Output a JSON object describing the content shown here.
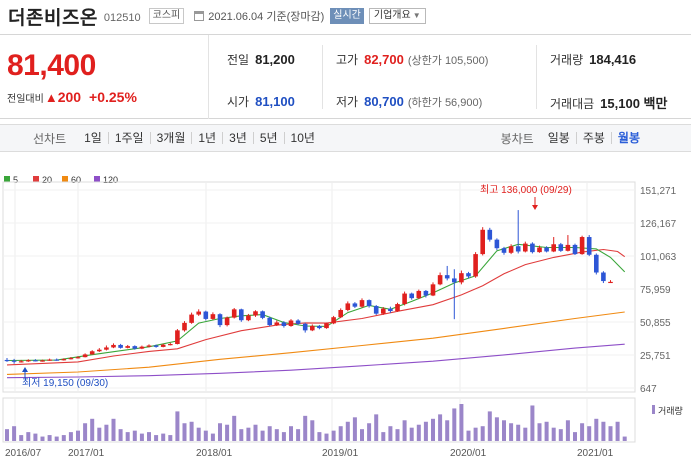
{
  "header": {
    "stock_name": "더존비즈온",
    "stock_code": "012510",
    "market": "코스피",
    "date_text": "2021.06.04 기준(장마감)",
    "realtime_label": "실시간",
    "company_info_label": "기업개요"
  },
  "price": {
    "current": "81,400",
    "change_label": "전일대비",
    "change_amount": "200",
    "change_rate": "+0.25%"
  },
  "stats": {
    "prev_close_label": "전일",
    "prev_close": "81,200",
    "high_label": "고가",
    "high": "82,700",
    "upper_limit": "(상한가 105,500)",
    "volume_label": "거래량",
    "volume": "184,416",
    "open_label": "시가",
    "open": "81,100",
    "low_label": "저가",
    "low": "80,700",
    "lower_limit": "(하한가 56,900)",
    "amount_label": "거래대금",
    "amount": "15,100 백만"
  },
  "tabs": {
    "line_chart_label": "선차트",
    "periods": [
      "1일",
      "1주일",
      "3개월",
      "1년",
      "3년",
      "5년",
      "10년"
    ],
    "candle_chart_label": "봉차트",
    "candles": [
      "일봉",
      "주봉",
      "월봉"
    ],
    "active_candle": "월봉"
  },
  "colors": {
    "up": "#e0201e",
    "down": "#2d56d6",
    "ma5": "#3aa63a",
    "ma20": "#e03c3c",
    "ma60": "#f08a12",
    "ma120": "#8e4fc8",
    "volume": "#9b86c9"
  },
  "chart_data": {
    "type": "candlestick",
    "title": "",
    "legend": [
      "5",
      "20",
      "60",
      "120"
    ],
    "y_ticks": [
      "151,271",
      "126,167",
      "101,063",
      "75,959",
      "50,855",
      "25,751",
      "647"
    ],
    "ylim": [
      647,
      151271
    ],
    "x_ticks": [
      "2016/07",
      "2017/01",
      "2018/01",
      "2019/01",
      "2020/01",
      "2021/01"
    ],
    "max_annotation": "최고 136,000 (09/29)",
    "min_annotation": "최저 19,150 (09/30)",
    "volume_legend": "거래량",
    "candles": [
      {
        "o": 22000,
        "c": 21500,
        "h": 23500,
        "l": 20500
      },
      {
        "o": 21500,
        "c": 20600,
        "h": 22800,
        "l": 19150
      },
      {
        "o": 20600,
        "c": 21000,
        "h": 22000,
        "l": 20000
      },
      {
        "o": 21000,
        "c": 21800,
        "h": 22500,
        "l": 20500
      },
      {
        "o": 21800,
        "c": 21200,
        "h": 22600,
        "l": 20800
      },
      {
        "o": 21200,
        "c": 21600,
        "h": 22200,
        "l": 20700
      },
      {
        "o": 21600,
        "c": 22300,
        "h": 23000,
        "l": 21300
      },
      {
        "o": 22300,
        "c": 21900,
        "h": 23100,
        "l": 21400
      },
      {
        "o": 21900,
        "c": 22600,
        "h": 23200,
        "l": 21500
      },
      {
        "o": 22600,
        "c": 23400,
        "h": 24200,
        "l": 22300
      },
      {
        "o": 23400,
        "c": 24100,
        "h": 24900,
        "l": 23000
      },
      {
        "o": 24100,
        "c": 26200,
        "h": 27000,
        "l": 23900
      },
      {
        "o": 26200,
        "c": 28600,
        "h": 29400,
        "l": 26000
      },
      {
        "o": 28600,
        "c": 29800,
        "h": 31000,
        "l": 28000
      },
      {
        "o": 29800,
        "c": 31500,
        "h": 33000,
        "l": 29200
      },
      {
        "o": 31500,
        "c": 33400,
        "h": 34600,
        "l": 31000
      },
      {
        "o": 33400,
        "c": 31200,
        "h": 34200,
        "l": 30600
      },
      {
        "o": 31200,
        "c": 32500,
        "h": 33400,
        "l": 30800
      },
      {
        "o": 32500,
        "c": 30600,
        "h": 33100,
        "l": 29800
      },
      {
        "o": 30600,
        "c": 32100,
        "h": 32900,
        "l": 30200
      },
      {
        "o": 32100,
        "c": 33000,
        "h": 33800,
        "l": 31500
      },
      {
        "o": 33000,
        "c": 31900,
        "h": 33700,
        "l": 31300
      },
      {
        "o": 31900,
        "c": 33600,
        "h": 34300,
        "l": 31600
      },
      {
        "o": 33600,
        "c": 34100,
        "h": 35000,
        "l": 33000
      },
      {
        "o": 34100,
        "c": 44500,
        "h": 45500,
        "l": 33800
      },
      {
        "o": 44500,
        "c": 50200,
        "h": 51500,
        "l": 43500
      },
      {
        "o": 50200,
        "c": 56500,
        "h": 58000,
        "l": 49500
      },
      {
        "o": 56500,
        "c": 58800,
        "h": 60500,
        "l": 55500
      },
      {
        "o": 58800,
        "c": 53200,
        "h": 59500,
        "l": 52000
      },
      {
        "o": 53200,
        "c": 56800,
        "h": 58200,
        "l": 52500
      },
      {
        "o": 56800,
        "c": 48500,
        "h": 57500,
        "l": 47000
      },
      {
        "o": 48500,
        "c": 54200,
        "h": 55000,
        "l": 47500
      },
      {
        "o": 54200,
        "c": 60500,
        "h": 61500,
        "l": 53500
      },
      {
        "o": 60500,
        "c": 52200,
        "h": 61000,
        "l": 51000
      },
      {
        "o": 52200,
        "c": 55800,
        "h": 57000,
        "l": 51500
      },
      {
        "o": 55800,
        "c": 59000,
        "h": 59800,
        "l": 54800
      },
      {
        "o": 59000,
        "c": 54000,
        "h": 59600,
        "l": 53000
      },
      {
        "o": 54000,
        "c": 48500,
        "h": 55000,
        "l": 47500
      },
      {
        "o": 48500,
        "c": 50500,
        "h": 52000,
        "l": 47800
      },
      {
        "o": 50500,
        "c": 47800,
        "h": 51500,
        "l": 46600
      },
      {
        "o": 47800,
        "c": 52000,
        "h": 53000,
        "l": 47200
      },
      {
        "o": 52000,
        "c": 49500,
        "h": 53000,
        "l": 48500
      },
      {
        "o": 49500,
        "c": 44500,
        "h": 50300,
        "l": 42800
      },
      {
        "o": 44500,
        "c": 47800,
        "h": 49000,
        "l": 43900
      },
      {
        "o": 47800,
        "c": 46200,
        "h": 48600,
        "l": 45300
      },
      {
        "o": 46200,
        "c": 49800,
        "h": 50500,
        "l": 45700
      },
      {
        "o": 49800,
        "c": 54500,
        "h": 55500,
        "l": 49200
      },
      {
        "o": 54500,
        "c": 60000,
        "h": 61200,
        "l": 53800
      },
      {
        "o": 60000,
        "c": 65000,
        "h": 66500,
        "l": 59000
      },
      {
        "o": 65000,
        "c": 62500,
        "h": 66000,
        "l": 61500
      },
      {
        "o": 62500,
        "c": 67500,
        "h": 68800,
        "l": 61800
      },
      {
        "o": 67500,
        "c": 63000,
        "h": 68000,
        "l": 61800
      },
      {
        "o": 63000,
        "c": 57200,
        "h": 63800,
        "l": 56200
      },
      {
        "o": 57200,
        "c": 61000,
        "h": 62200,
        "l": 56300
      },
      {
        "o": 61000,
        "c": 59200,
        "h": 62500,
        "l": 57800
      },
      {
        "o": 59200,
        "c": 64500,
        "h": 65500,
        "l": 58600
      },
      {
        "o": 64500,
        "c": 72500,
        "h": 74000,
        "l": 63500
      },
      {
        "o": 72500,
        "c": 69000,
        "h": 73200,
        "l": 67800
      },
      {
        "o": 69000,
        "c": 74500,
        "h": 75500,
        "l": 68300
      },
      {
        "o": 74500,
        "c": 71000,
        "h": 75200,
        "l": 69500
      },
      {
        "o": 71000,
        "c": 79500,
        "h": 81000,
        "l": 70500
      },
      {
        "o": 79500,
        "c": 86500,
        "h": 88500,
        "l": 78800
      },
      {
        "o": 86500,
        "c": 84000,
        "h": 93500,
        "l": 82500
      },
      {
        "o": 84000,
        "c": 81000,
        "h": 91000,
        "l": 53000
      },
      {
        "o": 81000,
        "c": 88000,
        "h": 90000,
        "l": 79500
      },
      {
        "o": 88000,
        "c": 85500,
        "h": 89000,
        "l": 84000
      },
      {
        "o": 85500,
        "c": 102500,
        "h": 104000,
        "l": 84500
      },
      {
        "o": 102500,
        "c": 121000,
        "h": 123000,
        "l": 101500
      },
      {
        "o": 121000,
        "c": 113500,
        "h": 122500,
        "l": 112000
      },
      {
        "o": 113500,
        "c": 107000,
        "h": 114500,
        "l": 105500
      },
      {
        "o": 107000,
        "c": 103500,
        "h": 108000,
        "l": 102000
      },
      {
        "o": 103500,
        "c": 108500,
        "h": 110000,
        "l": 102500
      },
      {
        "o": 108500,
        "c": 104500,
        "h": 136000,
        "l": 103000
      },
      {
        "o": 104500,
        "c": 110500,
        "h": 112000,
        "l": 103800
      },
      {
        "o": 110500,
        "c": 104000,
        "h": 111500,
        "l": 103000
      },
      {
        "o": 104000,
        "c": 107500,
        "h": 109000,
        "l": 103500
      },
      {
        "o": 107500,
        "c": 104500,
        "h": 108500,
        "l": 103800
      },
      {
        "o": 104500,
        "c": 110000,
        "h": 115500,
        "l": 104000
      },
      {
        "o": 110000,
        "c": 105000,
        "h": 111000,
        "l": 104200
      },
      {
        "o": 105000,
        "c": 109500,
        "h": 117000,
        "l": 104500
      },
      {
        "o": 109500,
        "c": 102500,
        "h": 110500,
        "l": 101800
      },
      {
        "o": 102500,
        "c": 115500,
        "h": 116500,
        "l": 102000
      },
      {
        "o": 115500,
        "c": 102000,
        "h": 117000,
        "l": 101000
      },
      {
        "o": 102000,
        "c": 88500,
        "h": 103000,
        "l": 87000
      },
      {
        "o": 88500,
        "c": 82000,
        "h": 89500,
        "l": 80500
      },
      {
        "o": 81100,
        "c": 81400,
        "h": 82700,
        "l": 80700
      }
    ],
    "ma5": [
      [
        0,
        21600
      ],
      [
        7,
        21900
      ],
      [
        12,
        26000
      ],
      [
        20,
        32000
      ],
      [
        24,
        36500
      ],
      [
        27,
        50000
      ],
      [
        30,
        53500
      ],
      [
        33,
        55600
      ],
      [
        36,
        56500
      ],
      [
        39,
        50500
      ],
      [
        42,
        47800
      ],
      [
        45,
        47500
      ],
      [
        48,
        58000
      ],
      [
        51,
        63500
      ],
      [
        54,
        60500
      ],
      [
        57,
        66500
      ],
      [
        60,
        73000
      ],
      [
        63,
        80500
      ],
      [
        66,
        86000
      ],
      [
        69,
        105000
      ],
      [
        72,
        110000
      ],
      [
        76,
        107500
      ],
      [
        80,
        107500
      ],
      [
        83,
        106500
      ],
      [
        85,
        100000
      ],
      [
        87,
        89000
      ]
    ],
    "ma20": [
      [
        0,
        18200
      ],
      [
        10,
        20500
      ],
      [
        15,
        25000
      ],
      [
        20,
        28500
      ],
      [
        24,
        30500
      ],
      [
        28,
        37500
      ],
      [
        33,
        44200
      ],
      [
        38,
        48500
      ],
      [
        42,
        50200
      ],
      [
        45,
        50000
      ],
      [
        50,
        53500
      ],
      [
        55,
        59000
      ],
      [
        60,
        64000
      ],
      [
        64,
        71500
      ],
      [
        67,
        78500
      ],
      [
        70,
        87500
      ],
      [
        73,
        94500
      ],
      [
        77,
        100000
      ],
      [
        81,
        104000
      ],
      [
        84,
        106000
      ],
      [
        86,
        104500
      ],
      [
        87,
        100500
      ]
    ],
    "ma60": [
      [
        0,
        11000
      ],
      [
        10,
        12800
      ],
      [
        20,
        16500
      ],
      [
        30,
        22500
      ],
      [
        40,
        27500
      ],
      [
        50,
        33000
      ],
      [
        60,
        38500
      ],
      [
        70,
        46000
      ],
      [
        80,
        53500
      ],
      [
        87,
        58500
      ]
    ],
    "ma120": [
      [
        0,
        8500
      ],
      [
        10,
        9000
      ],
      [
        20,
        10000
      ],
      [
        30,
        11800
      ],
      [
        40,
        14200
      ],
      [
        50,
        17500
      ],
      [
        60,
        21000
      ],
      [
        70,
        25800
      ],
      [
        80,
        31000
      ],
      [
        87,
        34000
      ]
    ],
    "volumes": [
      8,
      10,
      4,
      6,
      5,
      3,
      4,
      3,
      4,
      6,
      7,
      12,
      15,
      9,
      11,
      15,
      8,
      6,
      7,
      5,
      6,
      4,
      5,
      4,
      20,
      12,
      13,
      9,
      7,
      5,
      12,
      11,
      17,
      8,
      9,
      11,
      7,
      10,
      8,
      6,
      10,
      8,
      17,
      14,
      6,
      5,
      7,
      10,
      13,
      16,
      8,
      12,
      18,
      6,
      10,
      8,
      14,
      9,
      11,
      13,
      15,
      18,
      14,
      22,
      25,
      7,
      9,
      10,
      20,
      16,
      14,
      12,
      11,
      9,
      24,
      12,
      13,
      9,
      8,
      14,
      6,
      12,
      10,
      15,
      13,
      10,
      13,
      3
    ],
    "volume_max": 25
  }
}
